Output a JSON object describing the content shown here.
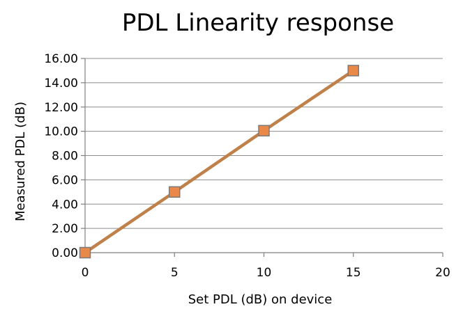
{
  "chart_data": {
    "type": "line",
    "title": "PDL Linearity response",
    "xlabel": "Set PDL (dB) on device",
    "ylabel": "Measured PDL (dB)",
    "xlim": [
      0,
      20
    ],
    "ylim": [
      0,
      16
    ],
    "xticks": [
      0,
      5,
      10,
      15,
      20
    ],
    "xtick_labels": [
      "0",
      "5",
      "10",
      "15",
      "20"
    ],
    "yticks": [
      0,
      2,
      4,
      6,
      8,
      10,
      12,
      14,
      16
    ],
    "ytick_labels": [
      "0.00",
      "2.00",
      "4.00",
      "6.00",
      "8.00",
      "10.00",
      "12.00",
      "14.00",
      "16.00"
    ],
    "grid": "horizontal",
    "legend": "none",
    "series": [
      {
        "x": [
          0,
          5,
          10,
          15
        ],
        "values": [
          0.0,
          5.0,
          10.05,
          15.0
        ],
        "line_color": "#c0804a",
        "marker": "square",
        "marker_fill": "#e8894a",
        "marker_edge": "#7a7a7a"
      }
    ]
  }
}
